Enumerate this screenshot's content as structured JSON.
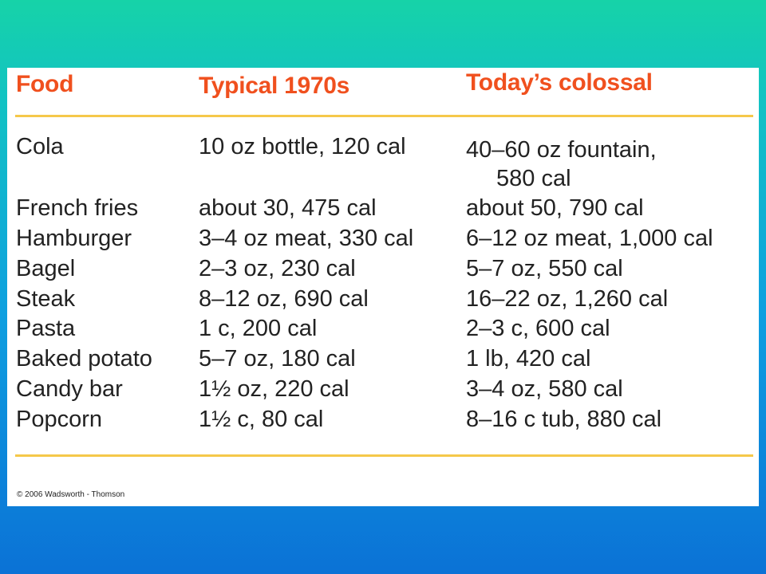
{
  "table": {
    "headers": {
      "food": "Food",
      "typical_1970s": "Typical 1970s",
      "today": "Today’s colossal"
    },
    "rows": [
      {
        "food": "Cola",
        "typical": "10 oz bottle, 120 cal",
        "today": "40–60 oz fountain,",
        "today_cont": "580 cal"
      },
      {
        "food": "French fries",
        "typical": "about 30, 475 cal",
        "today": "about 50, 790 cal"
      },
      {
        "food": "Hamburger",
        "typical": "3–4 oz meat, 330 cal",
        "today": "6–12 oz meat, 1,000 cal"
      },
      {
        "food": "Bagel",
        "typical": "2–3 oz, 230 cal",
        "today": "5–7 oz, 550 cal"
      },
      {
        "food": "Steak",
        "typical": "8–12 oz, 690 cal",
        "today": "16–22 oz, 1,260 cal"
      },
      {
        "food": "Pasta",
        "typical": "1 c, 200 cal",
        "today": "2–3 c, 600 cal"
      },
      {
        "food": "Baked potato",
        "typical": "5–7 oz, 180 cal",
        "today": "1 lb, 420 cal"
      },
      {
        "food": "Candy bar",
        "typical": "1½ oz, 220 cal",
        "today": "3–4 oz, 580 cal"
      },
      {
        "food": "Popcorn",
        "typical": "1½ c, 80 cal",
        "today": "8–16 c tub, 880 cal"
      }
    ]
  },
  "footer": {
    "copyright": "© 2006 Wadsworth - Thomson"
  },
  "colors": {
    "header_text": "#f0501e",
    "rule": "#f5c84a",
    "body_text": "#222222",
    "bg_top": "#16d3a8",
    "bg_bottom": "#0b72d6"
  }
}
